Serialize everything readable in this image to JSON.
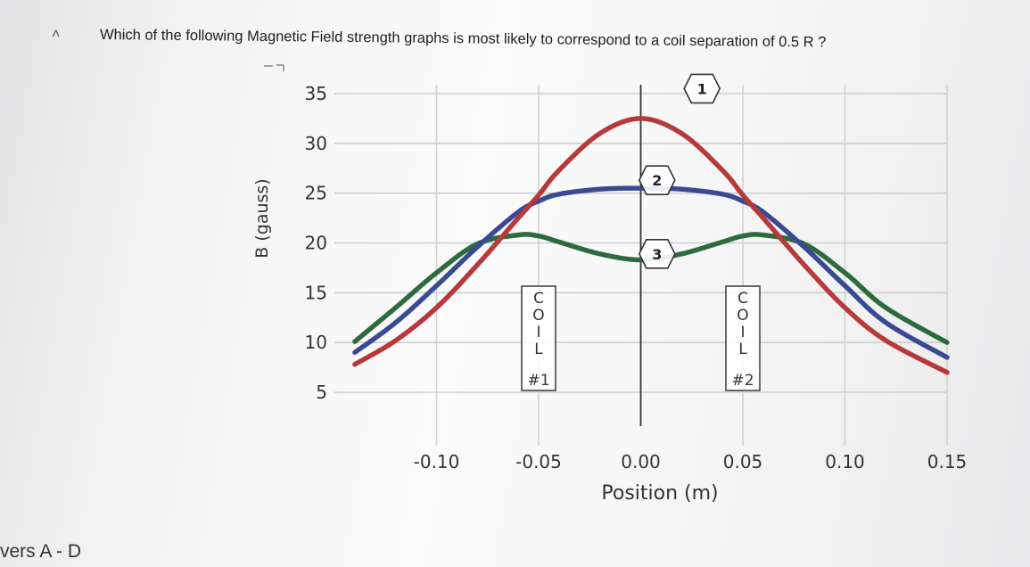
{
  "question": {
    "collapse_icon": "chevron-up-icon",
    "text": "Which of the following Magnetic Field strength graphs is most likely to correspond to a coil separation of 0.5 R ?"
  },
  "footer": {
    "answers_label": "vers A - D"
  },
  "chart_data": {
    "type": "line",
    "xlabel": "Position (m)",
    "ylabel": "B (gauss)",
    "xlim": [
      -0.15,
      0.15
    ],
    "ylim": [
      0,
      37
    ],
    "xticks": [
      -0.1,
      -0.05,
      0.0,
      0.05,
      0.1,
      0.15
    ],
    "xtick_labels": [
      "-0.10",
      "-0.05",
      "0.00",
      "0.05",
      "0.10",
      "0.15"
    ],
    "yticks": [
      5,
      10,
      15,
      20,
      25,
      30,
      35
    ],
    "ytick_labels": [
      "5",
      "10",
      "15",
      "20",
      "25",
      "30",
      "35"
    ],
    "grid": true,
    "x": [
      -0.14,
      -0.12,
      -0.1,
      -0.08,
      -0.06,
      -0.05,
      -0.04,
      -0.02,
      0.0,
      0.02,
      0.04,
      0.05,
      0.06,
      0.08,
      0.1,
      0.12,
      0.15
    ],
    "series": [
      {
        "label": "1",
        "color": "#b63a3a",
        "values": [
          7.8,
          10.2,
          13.5,
          17.8,
          22.5,
          24.8,
          27.3,
          31.0,
          32.5,
          31.0,
          27.3,
          24.8,
          22.5,
          17.8,
          13.5,
          10.2,
          7.0
        ]
      },
      {
        "label": "2",
        "color": "#3a4a92",
        "values": [
          9.0,
          12.0,
          15.7,
          19.6,
          23.1,
          24.2,
          24.9,
          25.4,
          25.5,
          25.4,
          24.9,
          24.2,
          23.1,
          19.6,
          15.7,
          12.0,
          8.5
        ]
      },
      {
        "label": "3",
        "color": "#2d6a3e",
        "values": [
          10.1,
          13.5,
          17.0,
          19.9,
          20.8,
          20.7,
          20.1,
          18.9,
          18.3,
          18.9,
          20.1,
          20.7,
          20.8,
          19.9,
          17.0,
          13.5,
          10.0
        ]
      }
    ],
    "annotations": [
      {
        "text": "COIL #1",
        "letters": [
          "C",
          "O",
          "I",
          "L"
        ],
        "number": "#1",
        "x": -0.05
      },
      {
        "text": "COIL #2",
        "letters": [
          "C",
          "O",
          "I",
          "L"
        ],
        "number": "#2",
        "x": 0.05
      }
    ]
  }
}
